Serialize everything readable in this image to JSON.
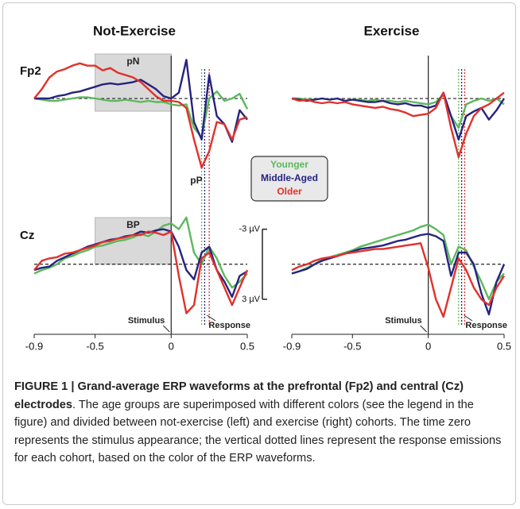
{
  "chart_data": [
    {
      "type": "line",
      "title": "Not-Exercise",
      "label": "Fp2",
      "region": {
        "label": "pN",
        "x": [
          -0.5,
          0
        ]
      },
      "annotation": "pP",
      "x": [
        -0.9,
        -0.85,
        -0.8,
        -0.75,
        -0.7,
        -0.65,
        -0.6,
        -0.55,
        -0.5,
        -0.45,
        -0.4,
        -0.35,
        -0.3,
        -0.25,
        -0.2,
        -0.15,
        -0.1,
        -0.05,
        0,
        0.05,
        0.1,
        0.15,
        0.2,
        0.25,
        0.3,
        0.35,
        0.4,
        0.45,
        0.5
      ],
      "xlim": [
        -0.9,
        0.5
      ],
      "ylim": [
        6.5,
        -4
      ],
      "series": [
        {
          "name": "Younger",
          "color": "#5cb85c",
          "response": 0.2,
          "values": [
            0,
            0.1,
            0.2,
            0.2,
            0.1,
            0,
            -0.1,
            -0.1,
            0,
            0.1,
            0.2,
            0.2,
            0.1,
            0.2,
            0.3,
            0.2,
            0.3,
            0.3,
            0.5,
            0.6,
            0.5,
            2.5,
            3.3,
            0,
            -0.6,
            0.2,
            0,
            -0.4,
            0.9
          ]
        },
        {
          "name": "Middle-Aged",
          "color": "#26237f",
          "response": 0.22,
          "values": [
            0,
            0,
            0,
            -0.2,
            -0.3,
            -0.5,
            -0.6,
            -0.8,
            -1,
            -1.2,
            -1.3,
            -1.2,
            -1.3,
            -1.4,
            -1.6,
            -1.2,
            -0.8,
            -0.2,
            0,
            -0.5,
            -3.3,
            2,
            3.5,
            -2,
            1.5,
            2.2,
            3.7,
            1,
            1.8
          ]
        },
        {
          "name": "Older",
          "color": "#e2302b",
          "response": 0.25,
          "values": [
            0,
            -0.8,
            -1.8,
            -2.3,
            -2.5,
            -2.8,
            -3,
            -2.8,
            -2.8,
            -2.4,
            -2.6,
            -2.2,
            -2,
            -1.8,
            -1.4,
            -0.8,
            -0.2,
            0.2,
            0.2,
            0.3,
            0.8,
            3.5,
            5.9,
            4.5,
            2,
            2.2,
            3.5,
            1.8,
            1.6
          ]
        }
      ]
    },
    {
      "type": "line",
      "title": "Exercise",
      "x": [
        -0.9,
        -0.85,
        -0.8,
        -0.75,
        -0.7,
        -0.65,
        -0.6,
        -0.55,
        -0.5,
        -0.45,
        -0.4,
        -0.35,
        -0.3,
        -0.25,
        -0.2,
        -0.15,
        -0.1,
        -0.05,
        0,
        0.05,
        0.1,
        0.15,
        0.2,
        0.25,
        0.3,
        0.35,
        0.4,
        0.45,
        0.5
      ],
      "xlim": [
        -0.9,
        0.5
      ],
      "ylim": [
        6.5,
        -4
      ],
      "series": [
        {
          "name": "Younger",
          "color": "#5cb85c",
          "response": 0.2,
          "values": [
            0,
            0,
            0.1,
            0.1,
            0,
            0.1,
            0,
            0.2,
            0.1,
            0.1,
            0.2,
            0.1,
            0.2,
            0.2,
            0.3,
            0.2,
            0.3,
            0.4,
            0.5,
            0.3,
            -0.3,
            1.5,
            2.5,
            0.5,
            0.2,
            0,
            0.2,
            0,
            0.5
          ]
        },
        {
          "name": "Middle-Aged",
          "color": "#26237f",
          "response": 0.22,
          "values": [
            0,
            0.1,
            0.2,
            0.1,
            0,
            0.1,
            0,
            0.2,
            0.1,
            0.2,
            0.3,
            0.3,
            0.2,
            0.4,
            0.5,
            0.4,
            0.6,
            0.6,
            0.8,
            0.6,
            -0.5,
            1.5,
            3.5,
            1.5,
            1.1,
            0.8,
            1.8,
            1,
            0
          ]
        },
        {
          "name": "Older",
          "color": "#e2302b",
          "response": 0.24,
          "values": [
            0,
            0.2,
            0.1,
            0.3,
            0.4,
            0.3,
            0.4,
            0.3,
            0.5,
            0.6,
            0.7,
            0.8,
            0.7,
            0.9,
            1,
            1.2,
            1.5,
            1.4,
            1.3,
            0.8,
            -0.5,
            2.5,
            5,
            3,
            1.5,
            0.8,
            0.5,
            0,
            -0.5
          ]
        }
      ]
    },
    {
      "type": "line",
      "label": "Cz",
      "region": {
        "label": "BP",
        "x": [
          -0.5,
          0
        ]
      },
      "annotations": [
        "Stimulus",
        "Response"
      ],
      "x": [
        -0.9,
        -0.85,
        -0.8,
        -0.75,
        -0.7,
        -0.65,
        -0.6,
        -0.55,
        -0.5,
        -0.45,
        -0.4,
        -0.35,
        -0.3,
        -0.25,
        -0.2,
        -0.15,
        -0.1,
        -0.05,
        0,
        0.05,
        0.1,
        0.15,
        0.2,
        0.25,
        0.3,
        0.35,
        0.4,
        0.45,
        0.5
      ],
      "xlim": [
        -0.9,
        0.5
      ],
      "ylim": [
        6,
        -4.2
      ],
      "xticks": [
        -0.9,
        -0.5,
        0,
        0.5
      ],
      "series": [
        {
          "name": "Younger",
          "color": "#5cb85c",
          "response": 0.2,
          "values": [
            0.8,
            0.5,
            0.3,
            0,
            -0.5,
            -0.7,
            -1,
            -1.2,
            -1.5,
            -1.6,
            -1.8,
            -2,
            -2.1,
            -2.3,
            -2.6,
            -2.4,
            -2.8,
            -3.3,
            -3.5,
            -3,
            -4,
            -1,
            0,
            -1.5,
            -0.5,
            1,
            2,
            1.5,
            0.8
          ]
        },
        {
          "name": "Middle-Aged",
          "color": "#26237f",
          "response": 0.22,
          "values": [
            0.5,
            0.3,
            0.2,
            -0.3,
            -0.6,
            -0.9,
            -1.2,
            -1.5,
            -1.7,
            -1.9,
            -2.1,
            -2.2,
            -2.4,
            -2.5,
            -2.8,
            -2.7,
            -2.9,
            -3,
            -2.8,
            -1.5,
            0.5,
            1.3,
            -1,
            -1.5,
            0.5,
            1.5,
            2.8,
            1,
            0.6
          ]
        },
        {
          "name": "Older",
          "color": "#e2302b",
          "response": 0.25,
          "values": [
            0.5,
            -0.3,
            -0.5,
            -0.6,
            -0.9,
            -1,
            -1.2,
            -1.4,
            -1.6,
            -1.9,
            -2,
            -2.2,
            -2.3,
            -2.5,
            -2.5,
            -2.8,
            -2.7,
            -2.5,
            -2.8,
            1,
            4.2,
            3.5,
            -0.5,
            -1,
            0.5,
            2,
            3.5,
            2,
            0.5
          ]
        }
      ]
    },
    {
      "type": "line",
      "annotations": [
        "Stimulus",
        "Response"
      ],
      "x": [
        -0.9,
        -0.85,
        -0.8,
        -0.75,
        -0.7,
        -0.65,
        -0.6,
        -0.55,
        -0.5,
        -0.45,
        -0.4,
        -0.35,
        -0.3,
        -0.25,
        -0.2,
        -0.15,
        -0.1,
        -0.05,
        0,
        0.05,
        0.1,
        0.15,
        0.2,
        0.25,
        0.3,
        0.35,
        0.4,
        0.45,
        0.5
      ],
      "xlim": [
        -0.9,
        0.5
      ],
      "ylim": [
        6,
        -4.2
      ],
      "xticks": [
        -0.9,
        -0.5,
        0,
        0.5
      ],
      "yticks": [
        {
          "value": -3,
          "label": "-3 µV"
        },
        {
          "value": 3,
          "label": "3 µV"
        }
      ],
      "series": [
        {
          "name": "Younger",
          "color": "#5cb85c",
          "response": 0.2,
          "values": [
            0.8,
            0.6,
            0.3,
            0,
            -0.4,
            -0.6,
            -0.8,
            -1,
            -1.2,
            -1.5,
            -1.7,
            -1.9,
            -2.1,
            -2.3,
            -2.5,
            -2.7,
            -2.9,
            -3.2,
            -3.4,
            -3,
            -2.5,
            0,
            -1.5,
            -1.2,
            0.2,
            1.5,
            3,
            1.5,
            0.8
          ]
        },
        {
          "name": "Middle-Aged",
          "color": "#26237f",
          "response": 0.22,
          "values": [
            0.8,
            0.6,
            0.4,
            0,
            -0.3,
            -0.5,
            -0.7,
            -0.9,
            -1.1,
            -1.3,
            -1.4,
            -1.5,
            -1.6,
            -1.8,
            -2,
            -2.1,
            -2.3,
            -2.5,
            -2.6,
            -2.4,
            -2,
            1,
            -1,
            -1,
            0,
            2.5,
            4.3,
            1.5,
            0
          ]
        },
        {
          "name": "Older",
          "color": "#e2302b",
          "response": 0.24,
          "values": [
            0.5,
            0.2,
            0,
            -0.3,
            -0.5,
            -0.6,
            -0.7,
            -0.9,
            -1,
            -1.1,
            -1.2,
            -1.3,
            -1.3,
            -1.4,
            -1.5,
            -1.6,
            -1.7,
            -1.8,
            0.3,
            3,
            4.5,
            2,
            -0.5,
            0.5,
            2,
            3,
            3.5,
            2,
            1
          ]
        }
      ]
    }
  ],
  "caption": {
    "heading": "FIGURE 1 | Grand-average ERP waveforms at the prefrontal (Fp2) and central (Cz) electrodes",
    "text": ". The age groups are superimposed with different colors (see the legend in the figure) and divided between not-exercise (left) and exercise (right) cohorts. The time zero represents the stimulus appearance; the vertical dotted lines represent the response emissions for each cohort, based on the color of the ERP waveforms."
  }
}
